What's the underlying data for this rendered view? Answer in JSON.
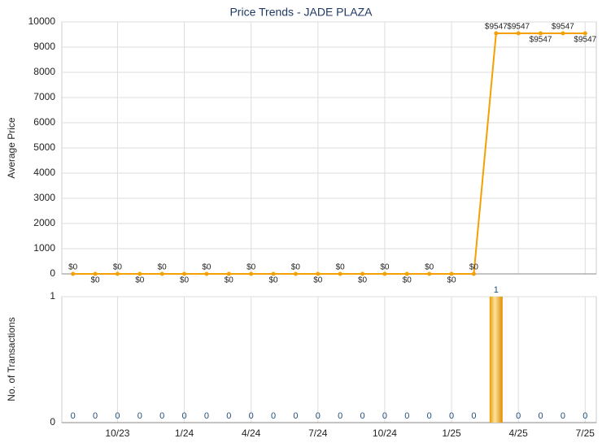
{
  "title": "Price Trends - JADE PLAZA",
  "chart_data": [
    {
      "type": "line",
      "y_label": "Average Price",
      "color": "#f5a000",
      "values": [
        0,
        0,
        0,
        0,
        0,
        0,
        0,
        0,
        0,
        0,
        0,
        0,
        0,
        0,
        0,
        0,
        0,
        0,
        0,
        9547,
        9547,
        9547,
        9547,
        9547
      ],
      "value_labels": [
        "$0",
        "$0",
        "$0",
        "$0",
        "$0",
        "$0",
        "$0",
        "$0",
        "$0",
        "$0",
        "$0",
        "$0",
        "$0",
        "$0",
        "$0",
        "$0",
        "$0",
        "$0",
        "$0",
        "$9547",
        "$9547",
        "$9547",
        "$9547",
        "$9547"
      ],
      "ylim": [
        0,
        10000
      ],
      "yticks": [
        0,
        1000,
        2000,
        3000,
        4000,
        5000,
        6000,
        7000,
        8000,
        9000,
        10000
      ],
      "grid": true
    },
    {
      "type": "bar",
      "y_label": "No. of Transactions",
      "color": "#f0a010",
      "categories": [
        null,
        null,
        "10/23",
        null,
        null,
        "1/24",
        null,
        null,
        "4/24",
        null,
        null,
        "7/24",
        null,
        null,
        "10/24",
        null,
        null,
        "1/25",
        null,
        null,
        "4/25",
        null,
        null,
        "7/25"
      ],
      "values": [
        0,
        0,
        0,
        0,
        0,
        0,
        0,
        0,
        0,
        0,
        0,
        0,
        0,
        0,
        0,
        0,
        0,
        0,
        0,
        1,
        0,
        0,
        0,
        0
      ],
      "ylim": [
        0,
        1
      ],
      "yticks": [
        0,
        1
      ],
      "grid": true
    }
  ]
}
